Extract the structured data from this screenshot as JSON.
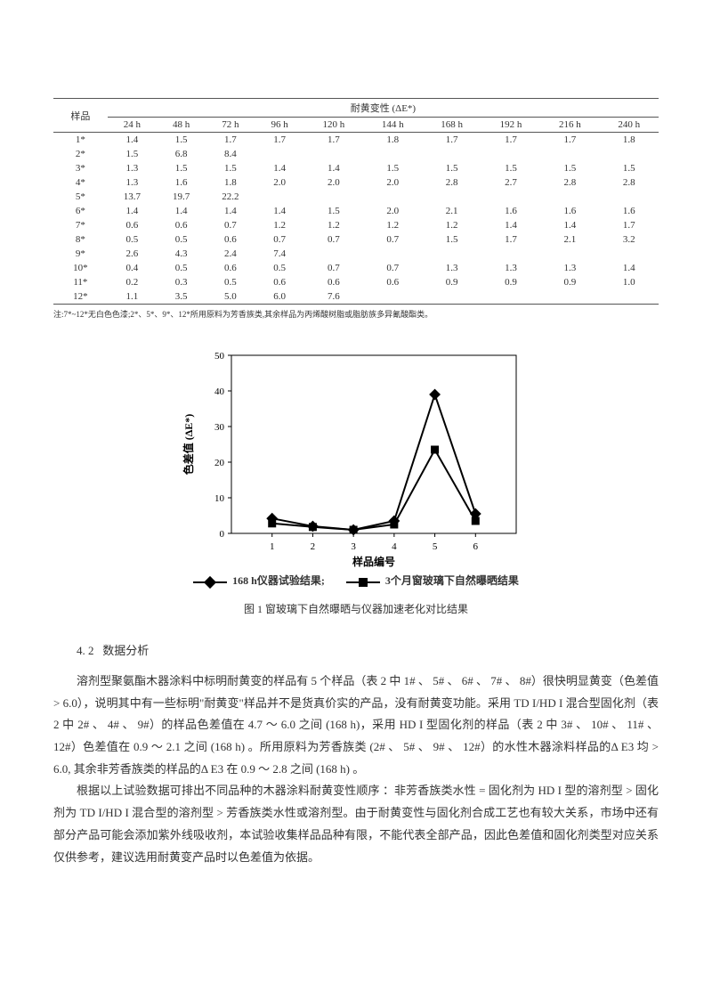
{
  "table": {
    "header_sample": "样品",
    "header_group": "耐黄变性 (ΔE*)",
    "columns": [
      "24 h",
      "48 h",
      "72 h",
      "96 h",
      "120 h",
      "144 h",
      "168 h",
      "192 h",
      "216 h",
      "240 h"
    ],
    "rows": [
      {
        "id": "1*",
        "v": [
          "1.4",
          "1.5",
          "1.7",
          "1.7",
          "1.7",
          "1.8",
          "1.7",
          "1.7",
          "1.7",
          "1.8"
        ]
      },
      {
        "id": "2*",
        "v": [
          "1.5",
          "6.8",
          "8.4",
          "",
          "",
          "",
          "",
          "",
          "",
          ""
        ]
      },
      {
        "id": "3*",
        "v": [
          "1.3",
          "1.5",
          "1.5",
          "1.4",
          "1.4",
          "1.5",
          "1.5",
          "1.5",
          "1.5",
          "1.5"
        ]
      },
      {
        "id": "4*",
        "v": [
          "1.3",
          "1.6",
          "1.8",
          "2.0",
          "2.0",
          "2.0",
          "2.8",
          "2.7",
          "2.8",
          "2.8"
        ]
      },
      {
        "id": "5*",
        "v": [
          "13.7",
          "19.7",
          "22.2",
          "",
          "",
          "",
          "",
          "",
          "",
          ""
        ]
      },
      {
        "id": "6*",
        "v": [
          "1.4",
          "1.4",
          "1.4",
          "1.4",
          "1.5",
          "2.0",
          "2.1",
          "1.6",
          "1.6",
          "1.6"
        ]
      },
      {
        "id": "7*",
        "v": [
          "0.6",
          "0.6",
          "0.7",
          "1.2",
          "1.2",
          "1.2",
          "1.2",
          "1.4",
          "1.4",
          "1.7"
        ]
      },
      {
        "id": "8*",
        "v": [
          "0.5",
          "0.5",
          "0.6",
          "0.7",
          "0.7",
          "0.7",
          "1.5",
          "1.7",
          "2.1",
          "3.2"
        ]
      },
      {
        "id": "9*",
        "v": [
          "2.6",
          "4.3",
          "2.4",
          "7.4",
          "",
          "",
          "",
          "",
          "",
          ""
        ]
      },
      {
        "id": "10*",
        "v": [
          "0.4",
          "0.5",
          "0.6",
          "0.5",
          "0.7",
          "0.7",
          "1.3",
          "1.3",
          "1.3",
          "1.4"
        ]
      },
      {
        "id": "11*",
        "v": [
          "0.2",
          "0.3",
          "0.5",
          "0.6",
          "0.6",
          "0.6",
          "0.9",
          "0.9",
          "0.9",
          "1.0"
        ]
      },
      {
        "id": "12*",
        "v": [
          "1.1",
          "3.5",
          "5.0",
          "6.0",
          "7.6",
          "",
          "",
          "",
          "",
          ""
        ]
      }
    ],
    "note": "注:7*~12*无白色色漆;2*、5*、9*、12*所用原料为芳香族类,其余样品为丙烯酸树脂或脂肪族多异氰酸酯类。"
  },
  "chart": {
    "type": "line",
    "ylabel": "色差值 (ΔE*)",
    "xlabel": "样品编号",
    "ylim": [
      0,
      50
    ],
    "ytick_step": 10,
    "x_categories": [
      "1",
      "2",
      "3",
      "4",
      "5",
      "6"
    ],
    "series": [
      {
        "name": "168 h仪器试验结果;",
        "marker": "diamond",
        "color": "#000000",
        "values": [
          4.2,
          2.0,
          1.0,
          3.5,
          39,
          5.5
        ]
      },
      {
        "name": "3个月窗玻璃下自然曝晒结果",
        "marker": "square",
        "color": "#000000",
        "values": [
          2.8,
          1.8,
          1.0,
          2.5,
          23.5,
          3.5
        ]
      }
    ],
    "line_width": 2,
    "marker_size": 9,
    "axis_color": "#000000",
    "grid_color": "#000000",
    "frame": true,
    "label_fontsize": 12,
    "tick_fontsize": 11
  },
  "figure_caption": "图 1  窗玻璃下自然曝晒与仪器加速老化对比结果",
  "section": {
    "num": "4. 2",
    "title": "数据分析"
  },
  "para1": "溶剂型聚氨酯木器涂料中标明耐黄变的样品有 5 个样品（表 2 中 1# 、 5# 、 6# 、 7# 、 8#）很快明显黄变（色差值 > 6.0），说明其中有一些标明\"耐黄变\"样品并不是货真价实的产品，没有耐黄变功能。采用 TD I/HD I  混合型固化剂（表 2 中 2# 、 4# 、 9#）的样品色差值在 4.7 ～ 6.0 之间 (168 h)，采用 HD I 型固化剂的样品（表 2 中 3# 、 10# 、 11# 、 12#）色差值在 0.9 ～ 2.1 之间 (168 h) 。所用原料为芳香族类 (2# 、 5# 、 9# 、 12#）的水性木器涂料样品的Δ E3 均 > 6.0, 其余非芳香族类的样品的Δ E3 在 0.9 ～ 2.8 之间 (168 h) 。",
  "para2": "根据以上试验数据可排出不同品种的木器涂料耐黄变性顺序 ：非芳香族类水性 = 固化剂为 HD I 型的溶剂型 > 固化剂为 TD I/HD I 混合型的溶剂型 > 芳香族类水性或溶剂型。由于耐黄变性与固化剂合成工艺也有较大关系，市场中还有部分产品可能会添加紫外线吸收剂，本试验收集样品品种有限，不能代表全部产品，因此色差值和固化剂类型对应关系仅供参考，建议选用耐黄变产品时以色差值为依据。"
}
